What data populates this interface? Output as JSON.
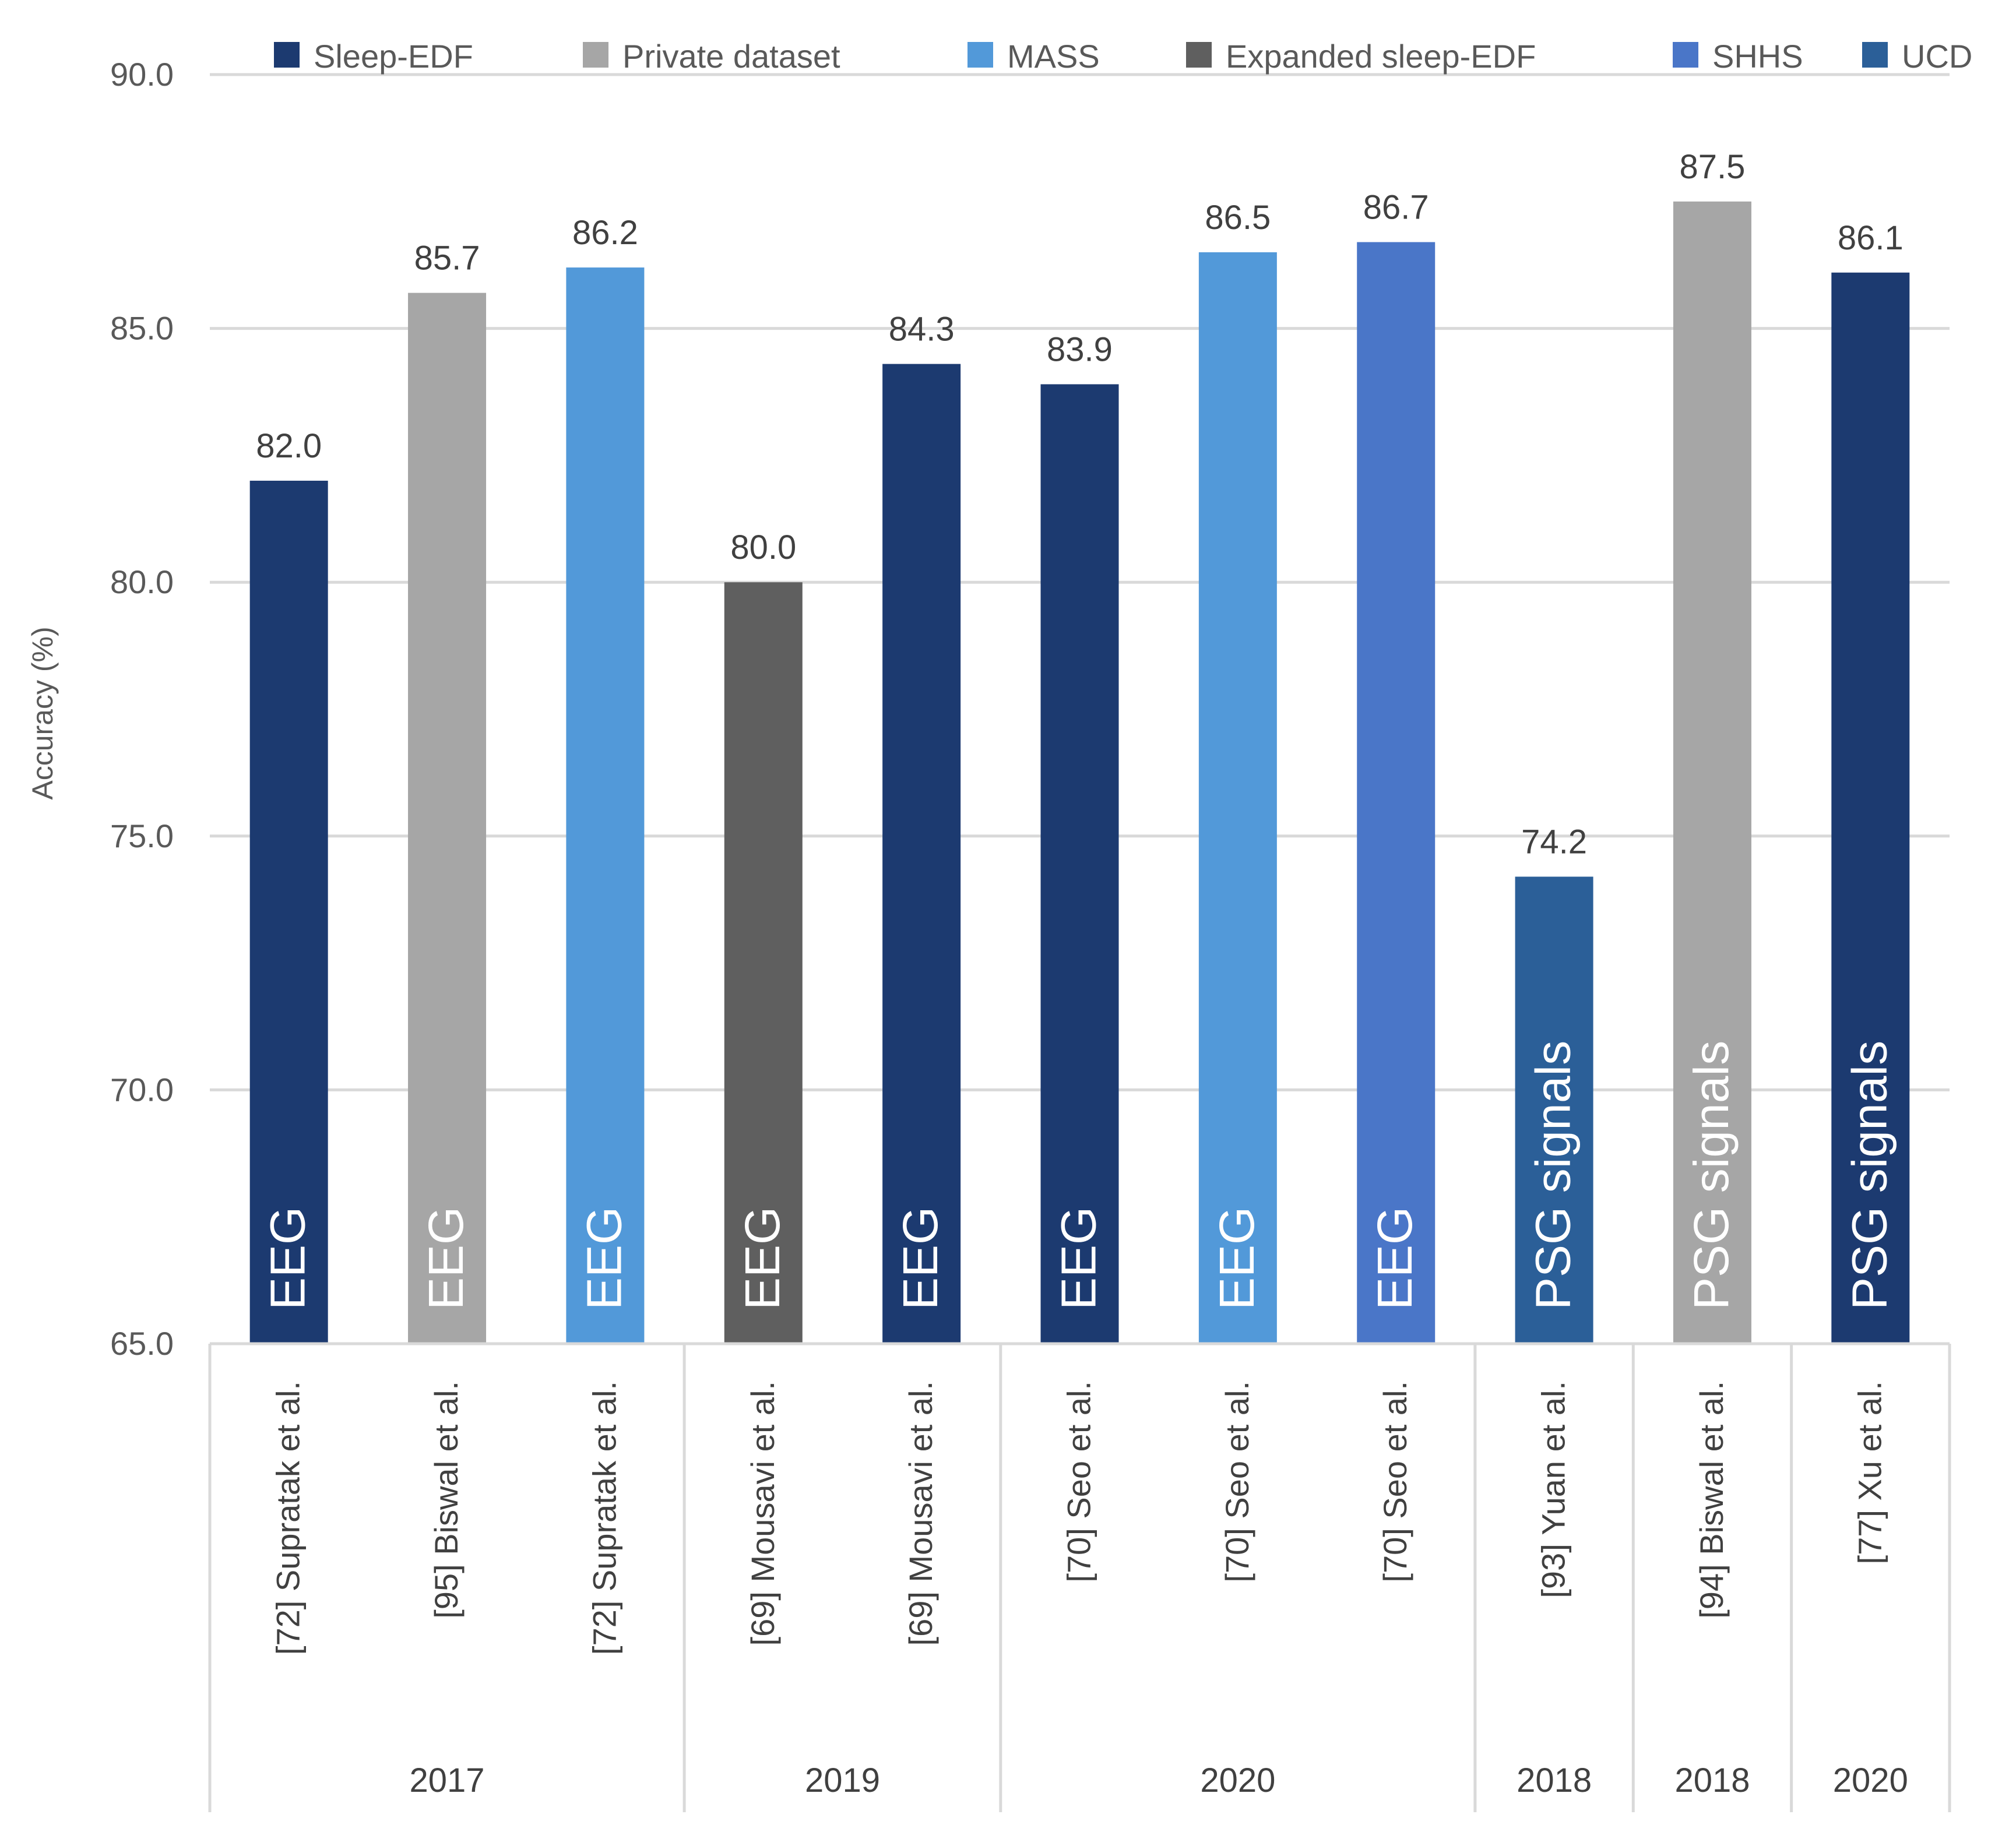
{
  "chart_data": {
    "type": "bar",
    "ylabel": "Accuracy (%)",
    "ylim": [
      65,
      90
    ],
    "yticks": [
      "65.0",
      "70.0",
      "75.0",
      "80.0",
      "85.0",
      "90.0"
    ],
    "grid": true,
    "legend_position": "top",
    "legend": [
      {
        "name": "Sleep-EDF",
        "color": "#1c3a70"
      },
      {
        "name": "Private dataset",
        "color": "#a6a6a6"
      },
      {
        "name": "MASS",
        "color": "#5299d9"
      },
      {
        "name": "Expanded sleep-EDF",
        "color": "#5f5f5f"
      },
      {
        "name": "SHHS",
        "color": "#4a76c8"
      },
      {
        "name": "UCD",
        "color": "#2b5f98"
      }
    ],
    "categories": [
      "[72] Supratak et al.",
      "[95] Biswal et al.",
      "[72] Supratak et al.",
      "[69] Mousavi et al.",
      "[69] Mousavi et al.",
      "[70] Seo et al.",
      "[70] Seo et al.",
      "[70] Seo et al.",
      "[93] Yuan et al.",
      "[94] Biswal et al.",
      "[77] Xu et al."
    ],
    "values": [
      82.0,
      85.7,
      86.2,
      80.0,
      84.3,
      83.9,
      86.5,
      86.7,
      74.2,
      87.5,
      86.1
    ],
    "value_labels": [
      "82.0",
      "85.7",
      "86.2",
      "80.0",
      "84.3",
      "83.9",
      "86.5",
      "86.7",
      "74.2",
      "87.5",
      "86.1"
    ],
    "datasets": [
      "Sleep-EDF",
      "Private dataset",
      "MASS",
      "Expanded sleep-EDF",
      "Sleep-EDF",
      "Sleep-EDF",
      "MASS",
      "SHHS",
      "UCD",
      "Private dataset",
      "Sleep-EDF"
    ],
    "signals": [
      "EEG",
      "EEG",
      "EEG",
      "EEG",
      "EEG",
      "EEG",
      "EEG",
      "EEG",
      "PSG signals",
      "PSG signals",
      "PSG signals"
    ],
    "groups": [
      {
        "label": "2017",
        "count": 3
      },
      {
        "label": "2019",
        "count": 2
      },
      {
        "label": "2020",
        "count": 3
      },
      {
        "label": "2018",
        "count": 1
      },
      {
        "label": "2018",
        "count": 1
      },
      {
        "label": "2020",
        "count": 1
      }
    ]
  }
}
